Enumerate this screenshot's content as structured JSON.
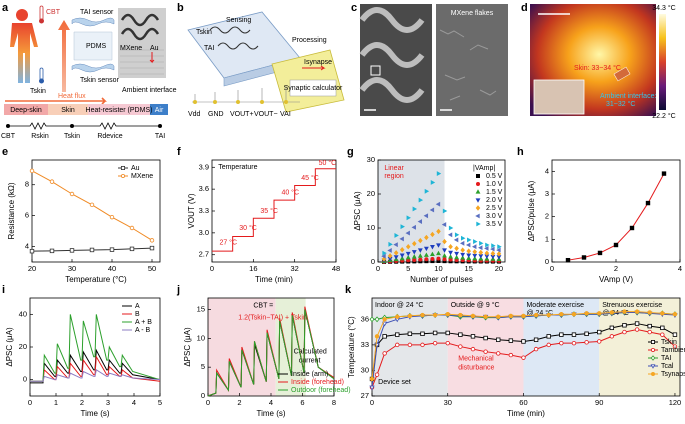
{
  "panels": {
    "a": {
      "label": "a",
      "cbt": "CBT",
      "t_skin": "Tskin",
      "t_ai_sensor": "TAI sensor",
      "pdms": "PDMS",
      "t_skin_sensor": "Tskin sensor",
      "mxene": "MXene",
      "au": "Au",
      "heat_flux": "Heat flux",
      "ambient": "Ambient interface",
      "deep_skin": "Deep-skin",
      "skin": "Skin",
      "heat_resister": "Heat-resister (PDMS)",
      "air": "Air",
      "c_cbt": "CBT",
      "c_rskin": "Rskin",
      "c_tskin": "Tskin",
      "c_rdevice": "Rdevice",
      "c_tai": "TAI"
    },
    "b": {
      "label": "b",
      "sensing": "Sensing",
      "t_skin": "Tskin",
      "t_ai": "TAI",
      "processing": "Processing",
      "i_synapse": "Isynapse",
      "calculator": "Synaptic calculator",
      "vdd": "Vdd",
      "gnd": "GND",
      "vout_p": "VOUT+",
      "vout_m": "VOUT−",
      "vai": "VAI"
    },
    "c": {
      "label": "c",
      "flakes": "MXene flakes"
    },
    "d": {
      "label": "d",
      "max": "34.3 °C",
      "min": "22.2 °C",
      "skin": "Skin: 33~34 °C",
      "ambient": "Ambient interface:",
      "ambient_range": "31~32 °C"
    }
  },
  "chart_data": [
    {
      "type": "line",
      "label": "e",
      "xlabel": "Temperature (°C)",
      "ylabel": "Resistance (kΩ)",
      "x": [
        20,
        25,
        30,
        35,
        40,
        45,
        50
      ],
      "xlim": [
        20,
        52
      ],
      "xticks": [
        20,
        30,
        40,
        50
      ],
      "ylim": [
        3,
        9.6
      ],
      "yticks": [
        4,
        6,
        8
      ],
      "legend": "upper right",
      "series": [
        {
          "name": "Au",
          "color": "#333333",
          "marker": "square-open",
          "values": [
            3.7,
            3.72,
            3.75,
            3.78,
            3.8,
            3.85,
            3.9
          ]
        },
        {
          "name": "MXene",
          "color": "#f08a24",
          "marker": "circle-open",
          "values": [
            8.9,
            8.2,
            7.4,
            6.7,
            5.9,
            5.2,
            4.4
          ]
        }
      ]
    },
    {
      "type": "line",
      "label": "f",
      "xlabel": "Time (min)",
      "ylabel": "VOUT (V)",
      "x": [
        0,
        8,
        8,
        16,
        16,
        24,
        24,
        32,
        32,
        40,
        40,
        48
      ],
      "xlim": [
        0,
        48
      ],
      "xticks": [
        0,
        16,
        32,
        48
      ],
      "ylim": [
        2.6,
        4.0
      ],
      "yticks": [
        2.7,
        {
          "value": 3,
          "label": "3.0"
        },
        3.3,
        3.6,
        3.9
      ],
      "series": [
        {
          "color": "#e41a1c",
          "values": [
            2.75,
            2.75,
            2.95,
            2.95,
            3.2,
            3.2,
            3.45,
            3.45,
            3.65,
            3.65,
            3.88,
            3.88
          ]
        }
      ],
      "annotations": [
        {
          "text": "Temperature",
          "color": "#000000"
        },
        {
          "text": "27 °C",
          "color": "#e41a1c"
        },
        {
          "text": "30 °C",
          "color": "#e41a1c"
        },
        {
          "text": "35 °C",
          "color": "#e41a1c"
        },
        {
          "text": "40 °C",
          "color": "#e41a1c"
        },
        {
          "text": "45 °C",
          "color": "#e41a1c"
        },
        {
          "text": "50 °C",
          "color": "#e41a1c"
        }
      ]
    },
    {
      "type": "scatter",
      "label": "g",
      "xlabel": "Number of pulses",
      "ylabel": "ΔPSC (μA)",
      "x": [
        1,
        2,
        3,
        4,
        5,
        6,
        7,
        8,
        9,
        10,
        11,
        12,
        13,
        14,
        15,
        16,
        17,
        18,
        19,
        20
      ],
      "xlim": [
        0,
        21
      ],
      "xticks": [
        0,
        5,
        10,
        15,
        20
      ],
      "ylim": [
        0,
        30
      ],
      "yticks": [
        0,
        10,
        20,
        30
      ],
      "legend": "right",
      "legend_title": "|VAmp|",
      "regions": [
        {
          "x": [
            0,
            11
          ],
          "color": "#dde2e8"
        }
      ],
      "annotations": [
        {
          "text": "Linear",
          "color": "#e41a1c"
        },
        {
          "text": "region",
          "color": "#e41a1c"
        }
      ],
      "series": [
        {
          "name": "0.5 V",
          "color": "#000000",
          "marker": "square",
          "values": [
            0.03,
            0.06,
            0.09,
            0.12,
            0.15,
            0.18,
            0.21,
            0.24,
            0.27,
            0.3,
            0.25,
            0.22,
            0.2,
            0.18,
            0.17,
            0.16,
            0.15,
            0.14,
            0.13,
            0.12
          ]
        },
        {
          "name": "1.0 V",
          "color": "#e41a1c",
          "marker": "circle",
          "values": [
            0.1,
            0.2,
            0.3,
            0.4,
            0.5,
            0.6,
            0.7,
            0.8,
            0.9,
            1,
            0.8,
            0.7,
            0.6,
            0.55,
            0.5,
            0.45,
            0.42,
            0.4,
            0.38,
            0.35
          ]
        },
        {
          "name": "1.5 V",
          "color": "#2ca02c",
          "marker": "triangle",
          "values": [
            0.25,
            0.5,
            0.75,
            1,
            1.25,
            1.5,
            1.75,
            2,
            2.25,
            2.5,
            1.8,
            1.5,
            1.3,
            1.2,
            1.1,
            1,
            0.95,
            0.9,
            0.85,
            0.8
          ]
        },
        {
          "name": "2.0 V",
          "color": "#1f3fbf",
          "marker": "triangle-down",
          "values": [
            0.5,
            1,
            1.5,
            2,
            2.5,
            3,
            3.5,
            4,
            4.5,
            5,
            3.5,
            2.8,
            2.5,
            2.2,
            2,
            1.9,
            1.8,
            1.7,
            1.6,
            1.5
          ]
        },
        {
          "name": "2.5 V",
          "color": "#f5a623",
          "marker": "diamond",
          "values": [
            0.9,
            1.8,
            2.7,
            3.6,
            4.5,
            5.4,
            6.3,
            7.2,
            8.1,
            9,
            6,
            4.5,
            4,
            3.5,
            3.2,
            3,
            2.8,
            2.6,
            2.5,
            2.4
          ]
        },
        {
          "name": "3.0 V",
          "color": "#5a6fc0",
          "marker": "triangle-left",
          "values": [
            1.7,
            3.4,
            5.1,
            6.8,
            8.5,
            10.2,
            11.9,
            13.6,
            15.3,
            17,
            11,
            8,
            6.5,
            5.5,
            5,
            4.5,
            4.2,
            4,
            3.8,
            3.5
          ]
        },
        {
          "name": "3.5 V",
          "color": "#1fb5d6",
          "marker": "triangle-right",
          "values": [
            2.6,
            5.2,
            7.8,
            10.4,
            13,
            15.6,
            18.2,
            20.8,
            23.4,
            26,
            15,
            10,
            8,
            7,
            6.5,
            6,
            5.5,
            5,
            4.8,
            4.5
          ]
        }
      ]
    },
    {
      "type": "line",
      "label": "h",
      "xlabel": "VAmp (V)",
      "ylabel": "ΔPSC/pulse (μA)",
      "x": [
        0.5,
        1,
        1.5,
        2,
        2.5,
        3,
        3.5
      ],
      "xlim": [
        0,
        4
      ],
      "xticks": [
        0,
        2,
        4
      ],
      "ylim": [
        0,
        4.5
      ],
      "yticks": [
        0,
        1,
        2,
        3,
        4
      ],
      "series": [
        {
          "color": "#e41a1c",
          "marker": "square",
          "marker_color": "#000000",
          "values": [
            0.08,
            0.2,
            0.4,
            0.75,
            1.5,
            2.6,
            3.9
          ]
        }
      ]
    },
    {
      "type": "line",
      "label": "i",
      "xlabel": "Time (s)",
      "ylabel": "ΔPSC (μA)",
      "x": [
        0,
        0.5,
        0.55,
        0.95,
        1,
        1.05,
        1.45,
        1.5,
        1.55,
        1.95,
        2,
        2.05,
        2.45,
        2.5,
        2.55,
        2.95,
        3,
        3.05,
        3.45,
        3.5,
        3.55,
        3.95,
        5
      ],
      "xlim": [
        0,
        5
      ],
      "xticks": [
        0,
        1,
        2,
        3,
        4,
        5
      ],
      "ylim": [
        -10,
        50
      ],
      "yticks": [
        0,
        20,
        40
      ],
      "legend": "upper right",
      "series": [
        {
          "name": "A",
          "color": "#000000",
          "values": [
            -2,
            -2,
            10,
            2,
            2,
            12,
            4,
            4,
            15,
            5,
            5,
            17,
            6,
            6,
            18,
            6,
            6,
            12,
            4,
            4,
            10,
            3,
            0
          ]
        },
        {
          "name": "B",
          "color": "#e41a1c",
          "values": [
            -1,
            -1,
            6,
            0,
            0,
            8,
            1,
            1,
            10,
            2,
            2,
            12,
            3,
            3,
            14,
            3,
            3,
            8,
            2,
            2,
            6,
            1,
            -1
          ]
        },
        {
          "name": "A + B",
          "color": "#2ca02c",
          "values": [
            -1,
            -1,
            15,
            4,
            4,
            22,
            7,
            7,
            40,
            12,
            12,
            36,
            14,
            14,
            40,
            12,
            12,
            20,
            8,
            8,
            15,
            5,
            0
          ]
        },
        {
          "name": "A - B",
          "color": "#8e7cc3",
          "values": [
            -1,
            -1,
            2,
            0,
            0,
            3,
            1,
            1,
            4,
            1,
            1,
            5,
            2,
            2,
            6,
            2,
            2,
            4,
            2,
            2,
            3,
            1,
            0
          ]
        }
      ]
    },
    {
      "type": "line",
      "label": "j",
      "xlabel": "Time (s)",
      "ylabel": "ΔPSC (μA)",
      "x": [
        0,
        0.5,
        0.55,
        1.3,
        1.35,
        2.1,
        2.15,
        2.9,
        2.95,
        3.7,
        3.75,
        4.5,
        4.55,
        5.3,
        5.35,
        6.1,
        6.15,
        7,
        8
      ],
      "xlim": [
        0,
        8
      ],
      "xticks": [
        0,
        2,
        4,
        6,
        8
      ],
      "ylim": [
        0,
        17
      ],
      "yticks": [
        0,
        5,
        10,
        15
      ],
      "legend": "lower right",
      "regions": [
        {
          "x": [
            0,
            4.3
          ],
          "color": "#f6dbe0"
        },
        {
          "x": [
            4.3,
            6.2
          ],
          "color": "#e6f0d8"
        }
      ],
      "annotations": [
        {
          "text": "CBT =",
          "color": "#000000"
        },
        {
          "text": "1.2(Tskin−TAI) + Tskin",
          "color": "#e41a1c"
        },
        {
          "text": "Calculated",
          "color": "#000000"
        },
        {
          "text": "current",
          "color": "#000000"
        }
      ],
      "series": [
        {
          "name": "Inside (arm)",
          "color": "#000000",
          "values": [
            0,
            0.5,
            4,
            1,
            6,
            1.5,
            8,
            2,
            9,
            2.5,
            11,
            3,
            13,
            3.5,
            14,
            4,
            15,
            5,
            3
          ]
        },
        {
          "name": "Inside (forehead)",
          "color": "#e41a1c",
          "values": [
            0,
            0.5,
            4.5,
            1,
            6.5,
            1.5,
            8.5,
            2,
            9.5,
            2.5,
            11.5,
            3,
            13.5,
            3.5,
            14.5,
            4,
            15.5,
            5,
            3.2
          ]
        },
        {
          "name": "Outdoor (forehead)",
          "color": "#2ca02c",
          "values": [
            0,
            0.5,
            4,
            1,
            6,
            1.5,
            8,
            2,
            9.5,
            2.5,
            11,
            3,
            13,
            3.5,
            14,
            4,
            15,
            5,
            3
          ]
        }
      ]
    },
    {
      "type": "line",
      "label": "k",
      "xlabel": "Time (min)",
      "ylabel": "Temperature (°C)",
      "x": [
        0,
        2,
        5,
        10,
        15,
        20,
        25,
        30,
        35,
        40,
        45,
        50,
        55,
        60,
        65,
        70,
        75,
        80,
        85,
        90,
        95,
        100,
        105,
        110,
        115,
        120
      ],
      "xlim": [
        0,
        122
      ],
      "xticks": [
        0,
        30,
        60,
        90,
        120
      ],
      "ylim": [
        27,
        38.5
      ],
      "yticks": [
        27,
        30,
        33,
        36
      ],
      "legend": "right",
      "regions": [
        {
          "x": [
            0,
            30
          ],
          "color": "#e4e7ea",
          "label": [
            "Indoor @ 24 °C"
          ]
        },
        {
          "x": [
            30,
            60
          ],
          "color": "#f8dde2",
          "label": [
            "Outside @ 9 °C"
          ]
        },
        {
          "x": [
            60,
            90
          ],
          "color": "#dde8f5",
          "label": [
            "Moderate exercise",
            "@ 24 °C"
          ]
        },
        {
          "x": [
            90,
            122
          ],
          "color": "#f3f0d8",
          "label": [
            "Strenuous exercise",
            "@ 24 °C"
          ]
        }
      ],
      "annotations": [
        {
          "text": "Device set",
          "color": "#000000"
        },
        {
          "text": "Mechanical",
          "color": "#e41a1c"
        },
        {
          "text": "disturbance",
          "color": "#e41a1c"
        }
      ],
      "series": [
        {
          "name": "Tskin",
          "color": "#000000",
          "marker": "square-open",
          "values": [
            29,
            33,
            34,
            34.2,
            34.3,
            34.3,
            34.4,
            34.4,
            34.2,
            34,
            33.8,
            33.6,
            33.5,
            33.4,
            33.6,
            34,
            34.2,
            34.2,
            34.3,
            34.5,
            35,
            35.3,
            35.5,
            35.2,
            35,
            34.2
          ]
        },
        {
          "name": "Tambient",
          "color": "#e41a1c",
          "marker": "circle-open",
          "values": [
            28,
            29.5,
            32,
            33,
            33,
            33,
            33.2,
            33.2,
            32.8,
            32.5,
            32.2,
            32,
            31.8,
            31.5,
            32.5,
            33,
            33.2,
            33.2,
            33.3,
            33.4,
            34,
            34.5,
            34.8,
            34.5,
            34.2,
            32.8
          ]
        },
        {
          "name": "TAI",
          "color": "#2ca02c",
          "marker": "diamond-open",
          "values": [
            36,
            36,
            36.2,
            36.3,
            36.4,
            36.4,
            36.5,
            36.5,
            36.3,
            36.3,
            36.2,
            36.2,
            36.3,
            36.3,
            36.4,
            36.5,
            36.5,
            36.6,
            36.6,
            36.6,
            36.7,
            36.8,
            36.8,
            36.7,
            36.7,
            36.6
          ]
        },
        {
          "name": "Tcal",
          "color": "#3f51b5",
          "marker": "triangle-down-open",
          "values": [
            28,
            33,
            35.5,
            36,
            36.3,
            36.4,
            36.5,
            36.5,
            36.4,
            36.3,
            36.3,
            36.2,
            36.3,
            36.3,
            36.4,
            36.5,
            36.5,
            36.6,
            36.6,
            36.6,
            36.7,
            36.8,
            36.8,
            36.7,
            36.6,
            36.5
          ]
        },
        {
          "name": "Tsynapse",
          "color": "#f5a623",
          "marker": "circle",
          "values": [
            29,
            34,
            36,
            36.3,
            36.4,
            36.5,
            36.5,
            36.6,
            36.5,
            36.4,
            36.3,
            36.3,
            36.4,
            36.4,
            36.5,
            36.5,
            36.6,
            36.6,
            36.7,
            36.7,
            36.8,
            36.9,
            36.9,
            36.8,
            36.7,
            36.6
          ]
        }
      ]
    }
  ]
}
